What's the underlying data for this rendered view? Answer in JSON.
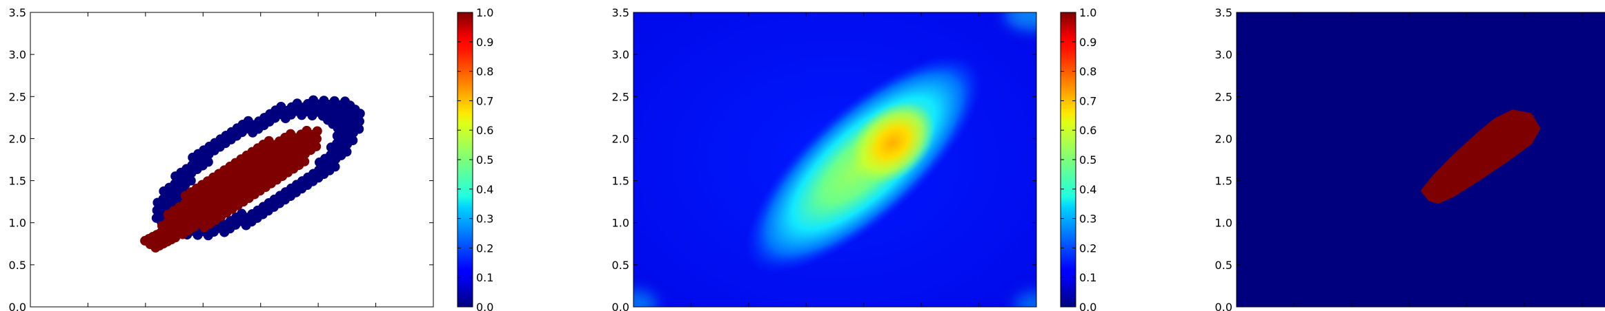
{
  "chart_data": [
    {
      "type": "scatter",
      "colormap": "jet",
      "xlim": [
        0,
        3.5
      ],
      "ylim": [
        0,
        3.5
      ],
      "xticks": [
        "0.0",
        "0.5",
        "1.0",
        "1.5",
        "2.0",
        "2.5",
        "3.0",
        "3.5"
      ],
      "yticks": [
        "0.0",
        "0.5",
        "1.0",
        "1.5",
        "2.0",
        "2.5",
        "3.0",
        "3.5"
      ],
      "colorbar_ticks": [
        "0.0",
        "0.1",
        "0.2",
        "0.3",
        "0.4",
        "0.5",
        "0.6",
        "0.7",
        "0.8",
        "0.9",
        "1.0"
      ],
      "series": [
        {
          "value": 0,
          "color": "#00007f",
          "description": "ring of training points surrounding the positive region",
          "center": [
            1.98,
            1.65
          ],
          "angle_deg": 42,
          "semi_major": 1.12,
          "semi_minor": 0.5
        },
        {
          "value": 1,
          "color": "#7f0000",
          "description": "positive training points along the diagonal band",
          "center": [
            1.83,
            1.48
          ],
          "angle_deg": 42,
          "semi_major": 0.92,
          "semi_minor": 0.25
        }
      ],
      "grid": false
    },
    {
      "type": "heatmap",
      "colormap": "jet",
      "xlim": [
        0,
        3.5
      ],
      "ylim": [
        0,
        3.5
      ],
      "xticks": [
        "0.0",
        "0.5",
        "1.0",
        "1.5",
        "2.0",
        "2.5",
        "3.0",
        "3.5"
      ],
      "yticks": [
        "0.0",
        "0.5",
        "1.0",
        "1.5",
        "2.0",
        "2.5",
        "3.0",
        "3.5"
      ],
      "colorbar_ticks": [
        "0.0",
        "0.1",
        "0.2",
        "0.3",
        "0.4",
        "0.5",
        "0.6",
        "0.7",
        "0.8",
        "0.9",
        "1.0"
      ],
      "background_value": 0.12,
      "peak": {
        "x": 2.25,
        "y": 1.95,
        "value": 0.72
      },
      "blob": {
        "center": [
          2.0,
          1.7
        ],
        "angle_deg": 42,
        "semi_major": 1.05,
        "semi_minor": 0.5,
        "value": 0.5
      },
      "grid": false
    },
    {
      "type": "heatmap",
      "colormap": "jet",
      "xlim": [
        0,
        3.5
      ],
      "ylim": [
        0,
        3.5
      ],
      "xticks": [
        "0.0",
        "0.5",
        "1.0",
        "1.5",
        "2.0",
        "2.5",
        "3.0",
        "3.5"
      ],
      "yticks": [
        "0.0",
        "0.5",
        "1.0",
        "1.5",
        "2.0",
        "2.5",
        "3.0",
        "3.5"
      ],
      "colorbar_ticks": [
        "0.0",
        "0.1",
        "0.2",
        "0.3",
        "0.4",
        "0.5",
        "0.6",
        "0.7",
        "0.8",
        "0.9",
        "1.0"
      ],
      "background_value": 0,
      "region": {
        "value": 1,
        "color": "#7f0000",
        "outline": [
          [
            1.68,
            1.28
          ],
          [
            1.62,
            1.38
          ],
          [
            1.72,
            1.55
          ],
          [
            1.9,
            1.8
          ],
          [
            2.1,
            2.05
          ],
          [
            2.25,
            2.22
          ],
          [
            2.4,
            2.32
          ],
          [
            2.55,
            2.28
          ],
          [
            2.62,
            2.12
          ],
          [
            2.55,
            1.95
          ],
          [
            2.35,
            1.75
          ],
          [
            2.1,
            1.52
          ],
          [
            1.88,
            1.33
          ],
          [
            1.75,
            1.25
          ]
        ]
      },
      "grid": false
    }
  ]
}
